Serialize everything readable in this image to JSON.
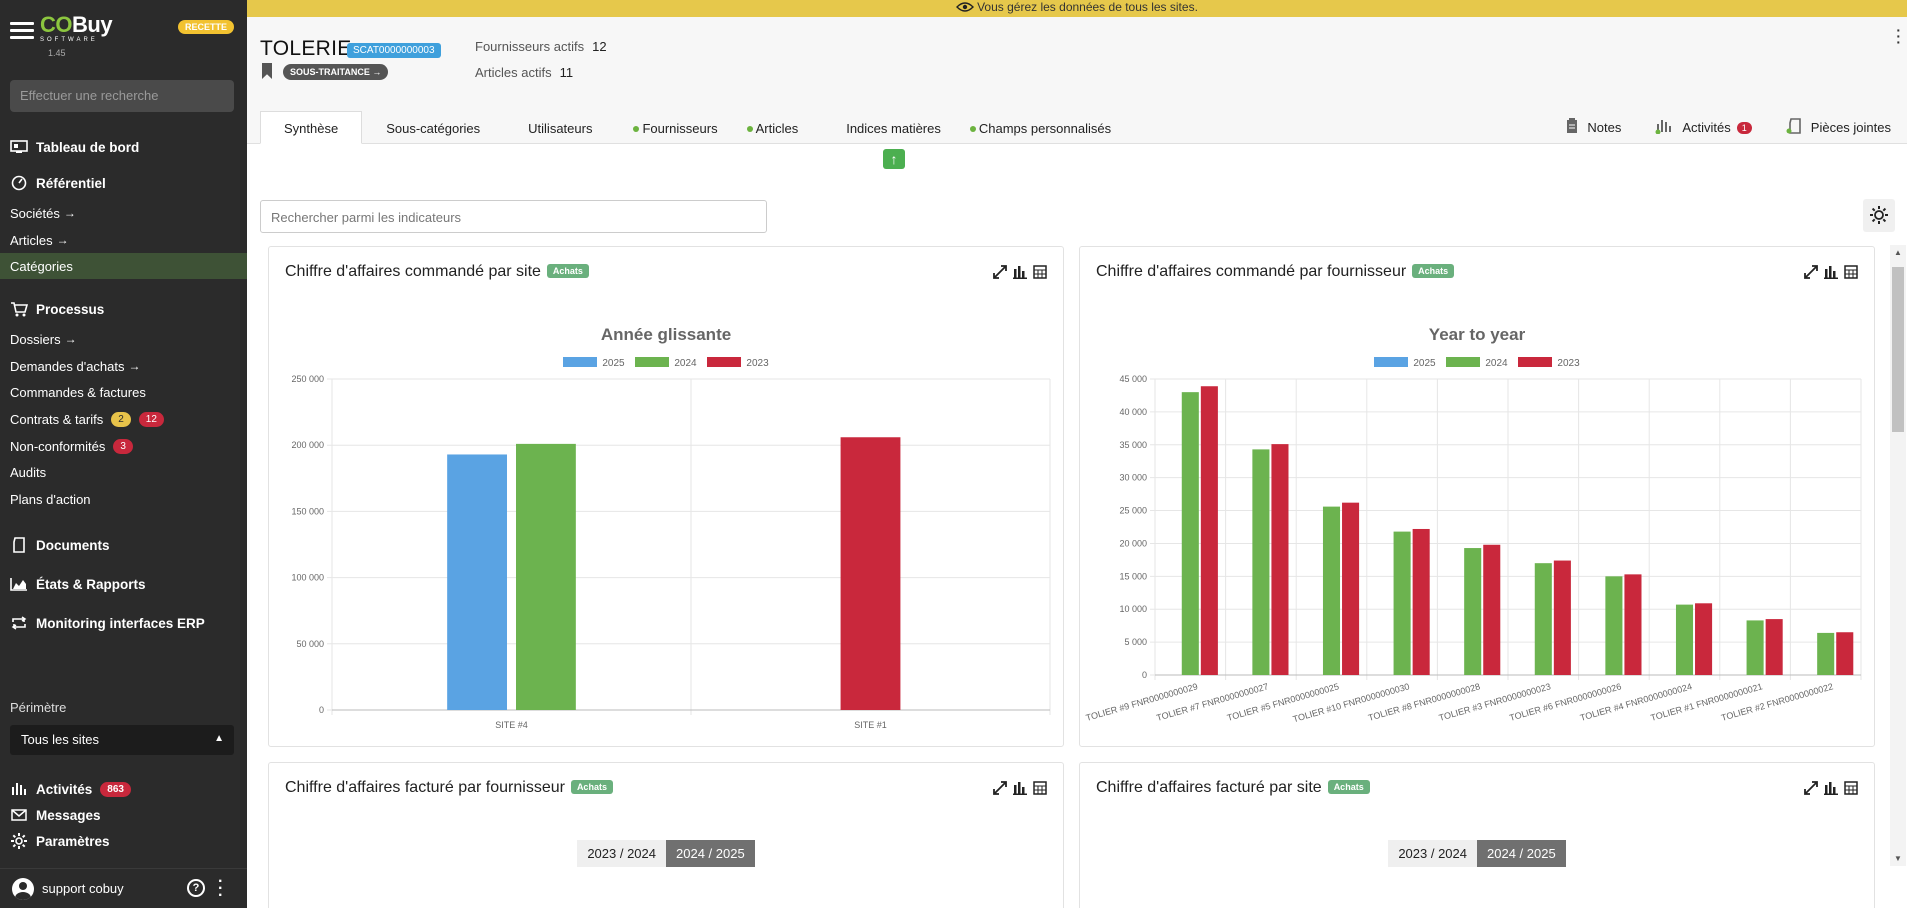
{
  "app": {
    "logo_co": "CO",
    "logo_buy": "Buy",
    "logo_sub": "SOFTWARE",
    "version": "1.45",
    "env_badge": "RECETTE"
  },
  "sidebar": {
    "search_placeholder": "Effectuer une recherche",
    "dashboard": "Tableau de bord",
    "referentiel": "Référentiel",
    "societes": "Sociétés",
    "articles": "Articles",
    "categories": "Catégories",
    "processus": "Processus",
    "dossiers": "Dossiers",
    "demandes": "Demandes d'achats",
    "commandes": "Commandes & factures",
    "contrats": "Contrats & tarifs",
    "contrats_badge_1": "2",
    "contrats_badge_2": "12",
    "nonconf": "Non-conformités",
    "nonconf_badge": "3",
    "audits": "Audits",
    "plans": "Plans d'action",
    "documents": "Documents",
    "etats": "États & Rapports",
    "monitoring": "Monitoring interfaces ERP",
    "perimetre_label": "Périmètre",
    "perimetre_value": "Tous les sites",
    "activites": "Activités",
    "activites_badge": "863",
    "messages": "Messages",
    "parametres": "Paramètres",
    "user": "support cobuy"
  },
  "banner": "Vous gérez les données de tous les sites.",
  "header": {
    "title": "TOLERIE",
    "code": "SCAT0000000003",
    "subtype": "SOUS-TRAITANCE",
    "fournisseurs_label": "Fournisseurs actifs",
    "fournisseurs_value": "12",
    "articles_label": "Articles actifs",
    "articles_value": "11"
  },
  "tabs": [
    "Synthèse",
    "Sous-catégories",
    "Utilisateurs",
    "Fournisseurs",
    "Articles",
    "Indices matières",
    "Champs personnalisés"
  ],
  "right_tabs": {
    "notes": "Notes",
    "activites": "Activités",
    "activites_badge": "1",
    "pj": "Pièces jointes"
  },
  "indicator_search_placeholder": "Rechercher parmi les indicateurs",
  "colors": {
    "c2025": "#5aa3e3",
    "c2024": "#6cb34f",
    "c2023": "#c9283c",
    "sidebar": "#2b2b2b",
    "active": "#3e5236"
  },
  "cards": {
    "c1": {
      "title": "Chiffre d'affaires commandé par site",
      "tag": "Achats"
    },
    "c2": {
      "title": "Chiffre d'affaires commandé par fournisseur",
      "tag": "Achats"
    },
    "c3": {
      "title": "Chiffre d'affaires facturé par fournisseur",
      "tag": "Achats",
      "seg_a": "2023 / 2024",
      "seg_b": "2024 / 2025"
    },
    "c4": {
      "title": "Chiffre d'affaires facturé par site",
      "tag": "Achats",
      "seg_a": "2023 / 2024",
      "seg_b": "2024 / 2025"
    }
  },
  "chart_data": [
    {
      "type": "bar",
      "title": "Année glissante",
      "categories": [
        "SITE #4",
        "SITE #1"
      ],
      "series": [
        {
          "name": "2025",
          "values": [
            193000,
            0
          ]
        },
        {
          "name": "2024",
          "values": [
            201000,
            0
          ]
        },
        {
          "name": "2023",
          "values": [
            0,
            206000
          ]
        }
      ],
      "ylim": [
        0,
        250000
      ],
      "yticks": [
        0,
        50000,
        100000,
        150000,
        200000,
        250000
      ],
      "ytick_labels": [
        "0",
        "50 000",
        "100 000",
        "150 000",
        "200 000",
        "250 000"
      ]
    },
    {
      "type": "bar",
      "title": "Year to year",
      "categories": [
        "TOLIER #9 FNR0000000029",
        "TOLIER #7 FNR0000000027",
        "TOLIER #5 FNR0000000025",
        "TOLIER #10 FNR0000000030",
        "TOLIER #8 FNR0000000028",
        "TOLIER #3 FNR0000000023",
        "TOLIER #6 FNR0000000026",
        "TOLIER #4 FNR0000000024",
        "TOLIER #1 FNR0000000021",
        "TOLIER #2 FNR0000000022"
      ],
      "series": [
        {
          "name": "2025",
          "values": [
            0,
            0,
            0,
            0,
            0,
            0,
            0,
            0,
            0,
            0
          ]
        },
        {
          "name": "2024",
          "values": [
            43000,
            34300,
            25600,
            21800,
            19300,
            17000,
            15000,
            10700,
            8300,
            6400
          ]
        },
        {
          "name": "2023",
          "values": [
            43900,
            35100,
            26200,
            22200,
            19800,
            17400,
            15300,
            10900,
            8500,
            6500
          ]
        }
      ],
      "ylim": [
        0,
        45000
      ],
      "yticks": [
        0,
        5000,
        10000,
        15000,
        20000,
        25000,
        30000,
        35000,
        40000,
        45000
      ],
      "ytick_labels": [
        "0",
        "5 000",
        "10 000",
        "15 000",
        "20 000",
        "25 000",
        "30 000",
        "35 000",
        "40 000",
        "45 000"
      ]
    }
  ]
}
